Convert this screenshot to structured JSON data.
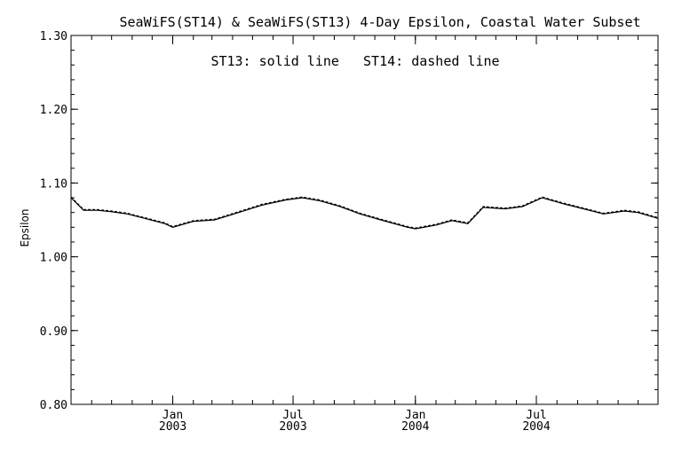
{
  "chart_data": {
    "type": "line",
    "title": "SeaWiFS(ST14) & SeaWiFS(ST13) 4-Day Epsilon, Coastal Water Subset",
    "annotation": "ST13: solid line   ST14: dashed line",
    "xlabel": "",
    "ylabel": "Epsilon",
    "ylim": [
      0.8,
      1.3
    ],
    "yticks": [
      "0.80",
      "0.90",
      "1.00",
      "1.10",
      "1.20",
      "1.30"
    ],
    "xlim": [
      "2002-08-01",
      "2004-12-31"
    ],
    "xticks": [
      {
        "date": "2003-01-01",
        "month": "Jan",
        "year": "2003"
      },
      {
        "date": "2003-07-01",
        "month": "Jul",
        "year": "2003"
      },
      {
        "date": "2004-01-01",
        "month": "Jan",
        "year": "2004"
      },
      {
        "date": "2004-07-01",
        "month": "Jul",
        "year": "2004"
      }
    ],
    "grid": false,
    "series": [
      {
        "name": "ST13",
        "style": "solid",
        "x": [
          "2002-08-01",
          "2002-08-20",
          "2002-09-10",
          "2002-10-01",
          "2002-10-25",
          "2002-11-20",
          "2002-12-20",
          "2003-01-01",
          "2003-02-01",
          "2003-03-05",
          "2003-04-10",
          "2003-05-15",
          "2003-06-20",
          "2003-07-15",
          "2003-08-10",
          "2003-09-10",
          "2003-10-10",
          "2003-11-10",
          "2003-12-20",
          "2004-01-01",
          "2004-02-01",
          "2004-02-25",
          "2004-03-20",
          "2004-04-12",
          "2004-05-15",
          "2004-06-10",
          "2004-07-10",
          "2004-08-10",
          "2004-09-10",
          "2004-10-10",
          "2004-11-10",
          "2004-12-01",
          "2004-12-31"
        ],
        "y": [
          1.08,
          1.063,
          1.063,
          1.061,
          1.058,
          1.052,
          1.045,
          1.04,
          1.048,
          1.05,
          1.06,
          1.07,
          1.077,
          1.08,
          1.076,
          1.068,
          1.058,
          1.05,
          1.04,
          1.038,
          1.043,
          1.049,
          1.045,
          1.067,
          1.065,
          1.068,
          1.08,
          1.072,
          1.065,
          1.058,
          1.062,
          1.06,
          1.052
        ]
      },
      {
        "name": "ST14",
        "style": "dashed",
        "x": [
          "2002-08-01",
          "2002-08-20",
          "2002-09-10",
          "2002-10-01",
          "2002-10-25",
          "2002-11-20",
          "2002-12-20",
          "2003-01-01",
          "2003-02-01",
          "2003-03-05",
          "2003-04-10",
          "2003-05-15",
          "2003-06-20",
          "2003-07-15",
          "2003-08-10",
          "2003-09-10",
          "2003-10-10",
          "2003-11-10",
          "2003-12-20",
          "2004-01-01",
          "2004-02-01",
          "2004-02-25",
          "2004-03-20",
          "2004-04-12",
          "2004-05-15",
          "2004-06-10",
          "2004-07-10",
          "2004-08-10",
          "2004-09-10",
          "2004-10-10",
          "2004-11-10",
          "2004-12-01",
          "2004-12-31"
        ],
        "y": [
          1.081,
          1.064,
          1.064,
          1.062,
          1.059,
          1.053,
          1.046,
          1.041,
          1.049,
          1.051,
          1.061,
          1.071,
          1.078,
          1.081,
          1.077,
          1.069,
          1.059,
          1.051,
          1.041,
          1.039,
          1.044,
          1.05,
          1.046,
          1.068,
          1.066,
          1.069,
          1.081,
          1.073,
          1.066,
          1.059,
          1.063,
          1.061,
          1.053
        ]
      }
    ]
  }
}
